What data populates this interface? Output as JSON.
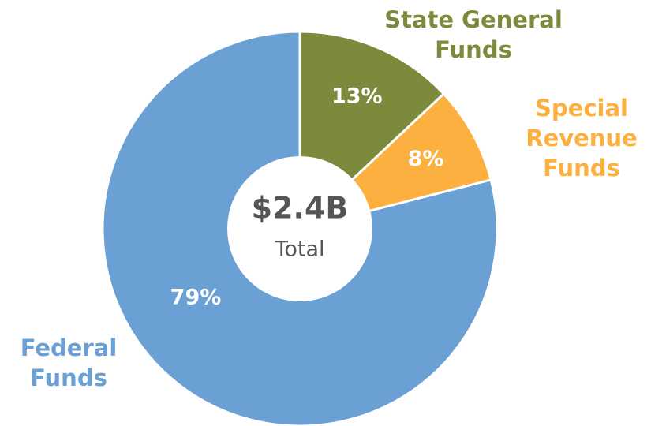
{
  "chart_data": {
    "type": "donut",
    "categories": [
      "State General Funds",
      "Special Revenue Funds",
      "Federal Funds"
    ],
    "values": [
      13,
      8,
      79
    ],
    "value_labels": [
      "13%",
      "8%",
      "79%"
    ],
    "colors": [
      "#7b8a3b",
      "#fbb040",
      "#6aa0d3"
    ],
    "center_value": "$2.4B",
    "center_label": "Total"
  }
}
